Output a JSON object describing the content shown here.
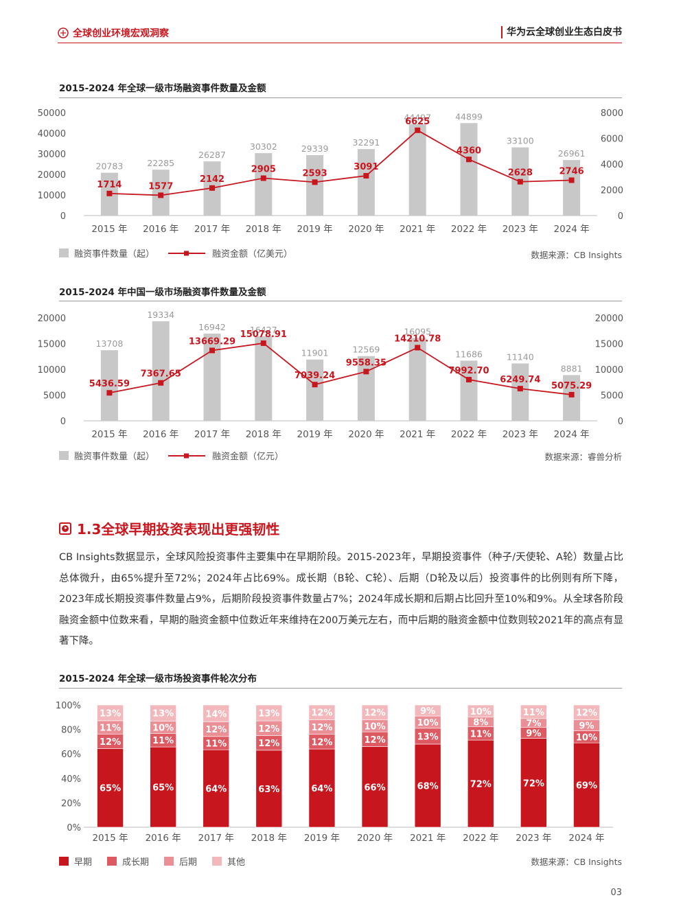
{
  "header": {
    "left_title": "全球创业环境宏观洞察",
    "right_title": "华为云全球创业生态白皮书"
  },
  "chart1": {
    "title": "2015-2024 年全球一级市场融资事件数量及金额",
    "legend_bar": "融资事件数量（起）",
    "legend_line": "融资金额（亿美元）",
    "source": "数据来源：CB Insights"
  },
  "chart2": {
    "title": "2015-2024 年中国一级市场融资事件数量及金额",
    "legend_bar": "融资事件数量（起）",
    "legend_line": "融资金额（亿元）",
    "source": "数据来源：睿兽分析"
  },
  "section": {
    "title": "1.3全球早期投资表现出更强韧性",
    "paragraph": "CB Insights数据显示，全球风险投资事件主要集中在早期阶段。2015-2023年，早期投资事件（种子/天使轮、A轮）数量占比总体微升，由65%提升至72%；2024年占比69%。成长期（B轮、C轮）、后期（D轮及以后）投资事件的比例则有所下降，2023年成长期投资事件数量占9%，后期阶段投资事件数量占7%；2024年成长期和后期占比回升至10%和9%。从全球各阶段融资金额中位数来看，早期的融资金额中位数近年来维持在200万美元左右，而中后期的融资金额中位数则较2021年的高点有显著下降。"
  },
  "chart3": {
    "title": "2015-2024 年全球一级市场投资事件轮次分布",
    "legend": [
      "早期",
      "成长期",
      "后期",
      "其他"
    ],
    "source": "数据来源：CB Insights"
  },
  "page_number": "03",
  "colors": {
    "red": "#c8161e",
    "bar_gray": "#c8c8c8",
    "growth": "#de5a62",
    "late": "#ea8f95",
    "other": "#f3b8bb"
  },
  "chart_data": [
    {
      "type": "bar",
      "categories": [
        "2015 年",
        "2016 年",
        "2017 年",
        "2018 年",
        "2019 年",
        "2020 年",
        "2021 年",
        "2022 年",
        "2023 年",
        "2024 年"
      ],
      "series": [
        {
          "name": "融资事件数量（起）",
          "type": "bar",
          "axis": "left",
          "values": [
            20783,
            22285,
            26287,
            30302,
            29339,
            32291,
            44497,
            44899,
            33100,
            26961
          ]
        },
        {
          "name": "融资金额（亿美元）",
          "type": "line",
          "axis": "right",
          "values": [
            1714,
            1577,
            2142,
            2905,
            2593,
            3091,
            6625,
            4360,
            2628,
            2746
          ]
        }
      ],
      "ylim_left": [
        0,
        50000
      ],
      "yticks_left": [
        0,
        10000,
        20000,
        30000,
        40000,
        50000
      ],
      "ylim_right": [
        0,
        8000
      ],
      "yticks_right": [
        0,
        2000,
        4000,
        6000,
        8000
      ]
    },
    {
      "type": "bar",
      "categories": [
        "2015 年",
        "2016 年",
        "2017 年",
        "2018 年",
        "2019 年",
        "2020 年",
        "2021 年",
        "2022 年",
        "2023 年",
        "2024 年"
      ],
      "series": [
        {
          "name": "融资事件数量（起）",
          "type": "bar",
          "axis": "left",
          "values": [
            13708,
            19334,
            16942,
            16427,
            11901,
            12569,
            16095,
            11686,
            11140,
            8881
          ]
        },
        {
          "name": "融资金额（亿元）",
          "type": "line",
          "axis": "right",
          "values": [
            "5436.59",
            "7367.65",
            "13669.29",
            "15078.91",
            "7039.24",
            "9558.35",
            "14210.78",
            "7992.70",
            "6249.74",
            "5075.29"
          ]
        }
      ],
      "ylim_left": [
        0,
        20000
      ],
      "yticks_left": [
        0,
        5000,
        10000,
        15000,
        20000
      ],
      "ylim_right": [
        0,
        20000
      ],
      "yticks_right": [
        0,
        5000,
        10000,
        15000,
        20000
      ]
    },
    {
      "type": "bar",
      "stacked": true,
      "categories": [
        "2015 年",
        "2016 年",
        "2017 年",
        "2018 年",
        "2019 年",
        "2020 年",
        "2021 年",
        "2022 年",
        "2023 年",
        "2024 年"
      ],
      "series": [
        {
          "name": "早期",
          "values": [
            65,
            65,
            64,
            63,
            64,
            66,
            68,
            72,
            72,
            69
          ]
        },
        {
          "name": "成长期",
          "values": [
            12,
            11,
            11,
            12,
            12,
            12,
            13,
            11,
            9,
            10
          ]
        },
        {
          "name": "后期",
          "values": [
            11,
            10,
            12,
            12,
            12,
            10,
            10,
            8,
            7,
            9
          ]
        },
        {
          "name": "其他",
          "values": [
            13,
            13,
            14,
            13,
            12,
            12,
            9,
            10,
            11,
            12
          ]
        }
      ],
      "ylim": [
        0,
        100
      ],
      "yticks": [
        "0%",
        "20%",
        "40%",
        "60%",
        "80%",
        "100%"
      ]
    }
  ]
}
